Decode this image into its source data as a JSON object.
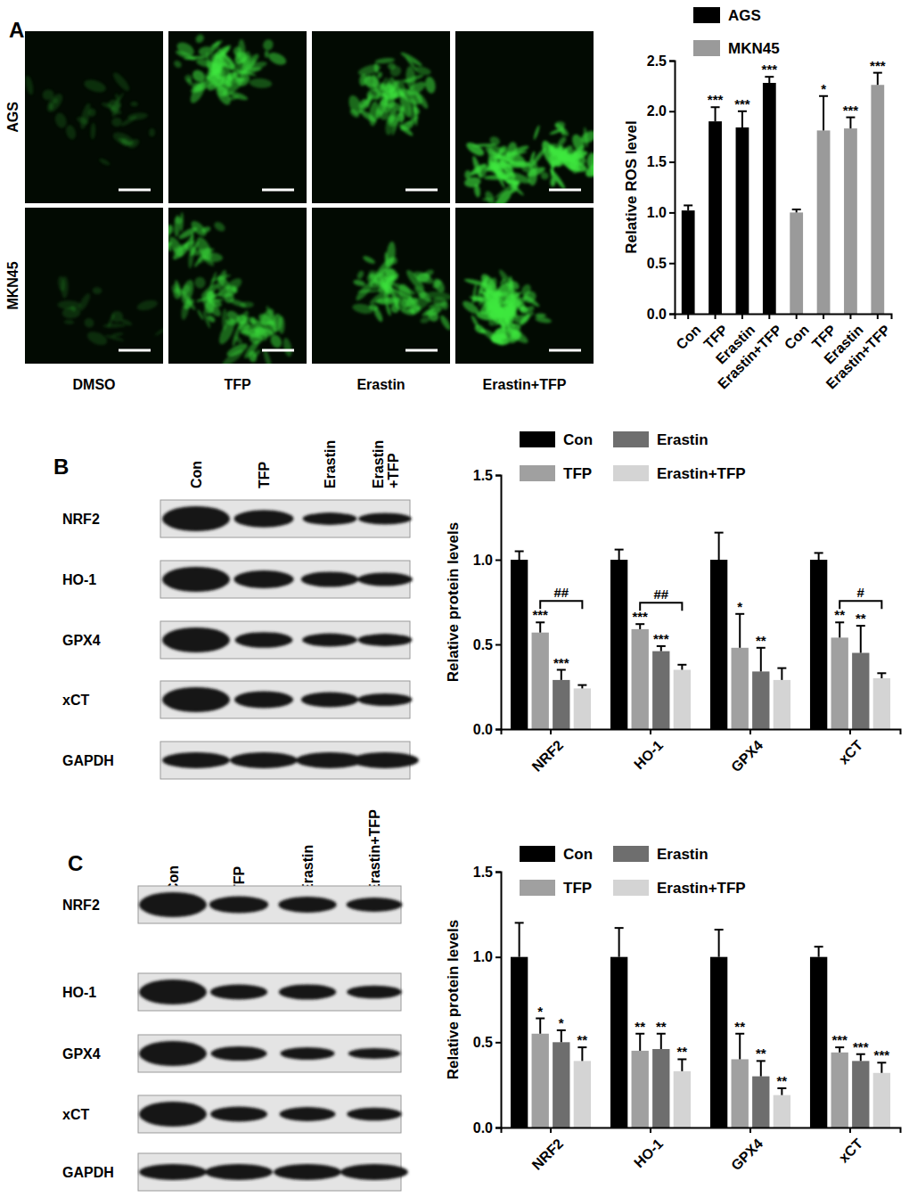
{
  "chart_data": [
    {
      "type": "bar",
      "categories": [
        "Con",
        "TFP",
        "Erastin",
        "Erastin+TFP",
        "Con",
        "TFP",
        "Erastin",
        "Erastin+TFP"
      ],
      "series": [
        {
          "name": "AGS",
          "color": "#000000",
          "values": [
            1.02,
            1.9,
            1.84,
            2.28,
            null,
            null,
            null,
            null
          ],
          "errors": [
            0.05,
            0.14,
            0.16,
            0.06,
            null,
            null,
            null,
            null
          ],
          "significance": [
            null,
            "***",
            "***",
            "***",
            null,
            null,
            null,
            null
          ]
        },
        {
          "name": "MKN45",
          "color": "#9a9a9a",
          "values": [
            null,
            null,
            null,
            null,
            1.0,
            1.81,
            1.83,
            2.26
          ],
          "errors": [
            null,
            null,
            null,
            null,
            0.03,
            0.34,
            0.11,
            0.12
          ],
          "significance": [
            null,
            null,
            null,
            null,
            null,
            "*",
            "***",
            "***"
          ]
        }
      ],
      "y_label": "Relative ROS level",
      "ylim": [
        0,
        2.5
      ],
      "yticks": [
        {
          "value": 0,
          "label": "0.0"
        },
        {
          "value": 0.5,
          "label": "0.5"
        },
        {
          "value": 1,
          "label": "1.0"
        },
        {
          "value": 1.5,
          "label": "1.5"
        },
        {
          "value": 2,
          "label": "2.0"
        },
        {
          "value": 2.5,
          "label": "2.5"
        }
      ],
      "legend": "top",
      "grid": false
    },
    {
      "type": "bar",
      "categories": [
        "NRF2",
        "HO-1",
        "GPX4",
        "xCT"
      ],
      "series": [
        {
          "name": "Con",
          "color": "#000000",
          "values": [
            1.0,
            1.0,
            1.0,
            1.0
          ],
          "errors": [
            0.05,
            0.06,
            0.16,
            0.04
          ],
          "significance": [
            null,
            null,
            null,
            null
          ]
        },
        {
          "name": "TFP",
          "color": "#a0a0a0",
          "values": [
            0.57,
            0.59,
            0.48,
            0.54
          ],
          "errors": [
            0.06,
            0.03,
            0.2,
            0.09
          ],
          "significance": [
            "***",
            "***",
            "*",
            "**"
          ]
        },
        {
          "name": "Erastin",
          "color": "#6e6e6e",
          "values": [
            0.29,
            0.46,
            0.34,
            0.45
          ],
          "errors": [
            0.06,
            0.03,
            0.14,
            0.16
          ],
          "significance": [
            "***",
            "***",
            "**",
            "**"
          ]
        },
        {
          "name": "Erastin+TFP",
          "color": "#d4d4d4",
          "values": [
            0.24,
            0.35,
            0.29,
            0.3
          ],
          "errors": [
            0.02,
            0.03,
            0.07,
            0.03
          ],
          "significance": [
            null,
            null,
            null,
            null
          ]
        }
      ],
      "comparison_labels": [
        "##",
        "##",
        null,
        "#"
      ],
      "y_label": "Relative protein levels",
      "ylim": [
        0,
        1.5
      ],
      "yticks": [
        {
          "value": 0,
          "label": "0.0"
        },
        {
          "value": 0.5,
          "label": "0.5"
        },
        {
          "value": 1,
          "label": "1.0"
        },
        {
          "value": 1.5,
          "label": "1.5"
        }
      ],
      "legend": "top",
      "grid": false
    },
    {
      "type": "bar",
      "categories": [
        "NRF2",
        "HO-1",
        "GPX4",
        "xCT"
      ],
      "series": [
        {
          "name": "Con",
          "color": "#000000",
          "values": [
            1.0,
            1.0,
            1.0,
            1.0
          ],
          "errors": [
            0.2,
            0.17,
            0.16,
            0.06
          ],
          "significance": [
            null,
            null,
            null,
            null
          ]
        },
        {
          "name": "TFP",
          "color": "#a0a0a0",
          "values": [
            0.55,
            0.45,
            0.4,
            0.44
          ],
          "errors": [
            0.09,
            0.1,
            0.15,
            0.03
          ],
          "significance": [
            "*",
            "**",
            "**",
            "***"
          ]
        },
        {
          "name": "Erastin",
          "color": "#6e6e6e",
          "values": [
            0.5,
            0.46,
            0.3,
            0.39
          ],
          "errors": [
            0.07,
            0.09,
            0.09,
            0.04
          ],
          "significance": [
            "*",
            "**",
            "**",
            "***"
          ]
        },
        {
          "name": "Erastin+TFP",
          "color": "#d4d4d4",
          "values": [
            0.39,
            0.33,
            0.19,
            0.32
          ],
          "errors": [
            0.08,
            0.07,
            0.04,
            0.06
          ],
          "significance": [
            "**",
            "**",
            "**",
            "***"
          ]
        }
      ],
      "y_label": "Relative protein levels",
      "ylim": [
        0,
        1.5
      ],
      "yticks": [
        {
          "value": 0,
          "label": "0.0"
        },
        {
          "value": 0.5,
          "label": "0.5"
        },
        {
          "value": 1,
          "label": "1.0"
        },
        {
          "value": 1.5,
          "label": "1.5"
        }
      ],
      "legend": "top",
      "grid": false
    }
  ],
  "figure": {
    "panels": [
      {
        "label": "A",
        "row_labels": [
          "AGS",
          "MKN45"
        ],
        "column_labels": [
          "DMSO",
          "TFP",
          "Erastin",
          "Erastin+TFP"
        ]
      },
      {
        "label": "B",
        "lanes": [
          [
            "Con"
          ],
          [
            "TFP"
          ],
          [
            "Erastin"
          ],
          [
            "Erastin",
            "+TFP"
          ]
        ],
        "proteins": [
          "NRF2",
          "HO-1",
          "GPX4",
          "xCT",
          "GAPDH"
        ]
      },
      {
        "label": "C",
        "lanes": [
          [
            "Con"
          ],
          [
            "TFP"
          ],
          [
            "Erastin"
          ],
          [
            "Erastin+TFP"
          ]
        ],
        "proteins": [
          "NRF2",
          "HO-1",
          "GPX4",
          "xCT",
          "GAPDH"
        ]
      }
    ]
  }
}
